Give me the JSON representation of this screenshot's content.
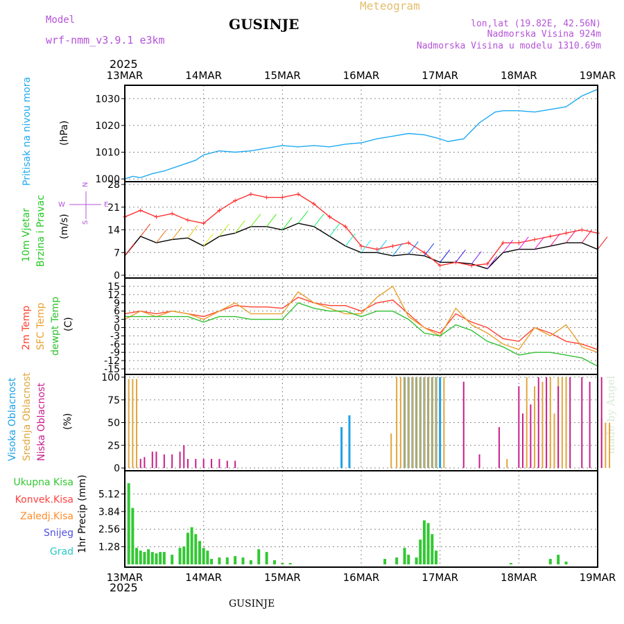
{
  "header": {
    "model_label": "Model",
    "model_name": "wrf-nmm_v3.9.1  e3km",
    "station": "GUSINJE",
    "title": "Meteogram",
    "lonlat": "lon,lat (19.82E, 42.56N)",
    "elevation": "Nadmorska Visina 924m",
    "model_elevation": "Nadmorska Visina u modelu 1310.69m",
    "year_top": "2025",
    "year_bottom": "2025",
    "footer_station": "GUSINJE",
    "watermark": "made by Angel"
  },
  "time_axis": {
    "days": [
      "13MAR",
      "14MAR",
      "15MAR",
      "16MAR",
      "17MAR",
      "18MAR",
      "19MAR"
    ]
  },
  "chart_data": [
    {
      "type": "line",
      "panel": "pressure",
      "labels": [
        "Pritisak na nivou mora",
        "(hPa)"
      ],
      "ylim": [
        999,
        1035
      ],
      "yticks": [
        1000,
        1010,
        1020,
        1030
      ],
      "series": [
        {
          "name": "MSLP",
          "color": "#1eaaf0",
          "x": [
            0,
            0.1,
            0.2,
            0.35,
            0.5,
            0.7,
            0.9,
            1.0,
            1.2,
            1.4,
            1.6,
            1.8,
            2.0,
            2.2,
            2.4,
            2.6,
            2.8,
            3.0,
            3.2,
            3.4,
            3.6,
            3.8,
            4.0,
            4.1,
            4.3,
            4.4,
            4.5,
            4.6,
            4.7,
            4.8,
            5.0,
            5.2,
            5.4,
            5.6,
            5.8,
            6.0
          ],
          "values": [
            1000,
            1001,
            1000.5,
            1002,
            1003,
            1005,
            1007,
            1009,
            1010.5,
            1010,
            1010.5,
            1011.5,
            1012.5,
            1012,
            1012.5,
            1012,
            1013,
            1013.5,
            1015,
            1016,
            1017,
            1016.5,
            1015,
            1014,
            1015,
            1018,
            1021,
            1023,
            1025,
            1025.5,
            1025.5,
            1025,
            1026,
            1027,
            1031,
            1033.5
          ]
        }
      ]
    },
    {
      "type": "line",
      "panel": "wind",
      "labels": [
        "10m Vjetar",
        "Brzina i Pravac",
        "(m/s)"
      ],
      "direction_legend": [
        "N",
        "W",
        "E",
        "S"
      ],
      "ylim": [
        0,
        28
      ],
      "yticks": [
        0,
        7,
        14,
        21,
        28
      ],
      "series": [
        {
          "name": "10m wind speed",
          "color": "#000000",
          "x": [
            0,
            0.2,
            0.4,
            0.6,
            0.8,
            1.0,
            1.2,
            1.4,
            1.6,
            1.8,
            2.0,
            2.2,
            2.4,
            2.6,
            2.8,
            3.0,
            3.2,
            3.4,
            3.6,
            3.8,
            4.0,
            4.2,
            4.4,
            4.6,
            4.8,
            5.0,
            5.2,
            5.4,
            5.6,
            5.8,
            6.0
          ],
          "values": [
            6,
            12,
            10,
            11,
            11.5,
            9,
            12,
            13,
            15,
            15,
            14,
            16,
            15,
            12,
            9,
            7,
            7,
            6,
            6.5,
            6,
            4,
            4,
            3.5,
            2,
            7,
            8,
            8,
            9,
            10,
            10,
            8
          ]
        },
        {
          "name": "10m wind gust",
          "color": "#ff3030",
          "x": [
            0,
            0.2,
            0.4,
            0.6,
            0.8,
            1.0,
            1.2,
            1.4,
            1.6,
            1.8,
            2.0,
            2.2,
            2.4,
            2.6,
            2.8,
            3.0,
            3.2,
            3.4,
            3.6,
            3.8,
            4.0,
            4.2,
            4.4,
            4.6,
            4.8,
            5.0,
            5.2,
            5.4,
            5.6,
            5.8,
            6.0
          ],
          "values": [
            18,
            20,
            18,
            19,
            17,
            16,
            20,
            23,
            25,
            24,
            24,
            25,
            22,
            18,
            15,
            9,
            8,
            9,
            10,
            7,
            3,
            4,
            3,
            3.5,
            10,
            10,
            11,
            12,
            13,
            14,
            13
          ]
        }
      ]
    },
    {
      "type": "line",
      "panel": "temperature",
      "labels": [
        "2m Temp",
        "SFC Temp",
        "dewpt Temp",
        "(C)"
      ],
      "ylim": [
        -16,
        17
      ],
      "yticks": [
        15,
        12,
        9,
        6,
        3,
        0,
        -3,
        -6,
        -9,
        -12,
        -15
      ],
      "series": [
        {
          "name": "2m Temp",
          "color": "#ff4030",
          "x": [
            0,
            0.2,
            0.4,
            0.6,
            0.8,
            1.0,
            1.2,
            1.4,
            1.6,
            1.8,
            2.0,
            2.2,
            2.4,
            2.6,
            2.8,
            3.0,
            3.2,
            3.4,
            3.6,
            3.8,
            4.0,
            4.2,
            4.4,
            4.6,
            4.8,
            5.0,
            5.2,
            5.4,
            5.6,
            5.8,
            6.0
          ],
          "values": [
            5,
            6,
            5,
            6,
            5,
            4,
            6,
            8,
            7.5,
            7.5,
            7,
            11,
            9,
            8,
            8,
            6,
            9,
            10,
            5,
            0,
            -2,
            5,
            2,
            0,
            -4,
            -5,
            0,
            -2,
            -5,
            -6,
            -8
          ]
        },
        {
          "name": "SFC Temp",
          "color": "#e8a030",
          "x": [
            0,
            0.2,
            0.4,
            0.6,
            0.8,
            1.0,
            1.2,
            1.4,
            1.6,
            1.8,
            2.0,
            2.2,
            2.4,
            2.6,
            2.8,
            3.0,
            3.2,
            3.4,
            3.6,
            3.8,
            4.0,
            4.2,
            4.4,
            4.6,
            4.8,
            5.0,
            5.2,
            5.4,
            5.6,
            5.8,
            6.0
          ],
          "values": [
            3,
            6,
            4,
            6,
            5,
            3,
            6,
            9,
            5,
            5,
            5,
            13,
            9,
            7,
            5,
            5,
            11,
            15,
            4,
            0,
            -3,
            7,
            1,
            -2,
            -6,
            -8,
            0,
            -3,
            1,
            -7,
            -9
          ]
        },
        {
          "name": "dewpt Temp",
          "color": "#30c030",
          "x": [
            0,
            0.2,
            0.4,
            0.6,
            0.8,
            1.0,
            1.2,
            1.4,
            1.6,
            1.8,
            2.0,
            2.2,
            2.4,
            2.6,
            2.8,
            3.0,
            3.2,
            3.4,
            3.6,
            3.8,
            4.0,
            4.2,
            4.4,
            4.6,
            4.8,
            5.0,
            5.2,
            5.4,
            5.6,
            5.8,
            6.0
          ],
          "values": [
            4,
            4,
            4,
            4,
            4,
            2,
            4,
            4,
            3,
            3,
            3,
            9,
            7,
            6,
            6,
            4,
            6,
            6,
            3,
            -2,
            -3,
            1,
            -1,
            -5,
            -7,
            -10,
            -9,
            -9,
            -10,
            -11,
            -14
          ]
        }
      ]
    },
    {
      "type": "bar",
      "panel": "cloud",
      "labels": [
        "Visoka Oblacnost",
        "Srednja Oblacnost",
        "Niska Oblacnost",
        "(%)"
      ],
      "ylim": [
        0,
        100
      ],
      "yticks": [
        0,
        25,
        50,
        75,
        100
      ],
      "series": [
        {
          "name": "Visoka Oblacnost",
          "color": "#1ea0e6",
          "x": [
            2.75,
            2.85,
            3.55,
            3.6,
            3.65,
            3.7,
            3.75,
            3.8,
            3.85,
            3.9,
            3.95,
            4.0
          ],
          "values": [
            45,
            58,
            100,
            100,
            100,
            100,
            100,
            100,
            100,
            100,
            100,
            100
          ]
        },
        {
          "name": "Srednja Oblacnost",
          "color": "#e1a53c",
          "x": [
            0.05,
            0.1,
            0.15,
            3.38,
            3.45,
            3.5,
            3.55,
            3.6,
            3.65,
            3.7,
            3.75,
            3.8,
            3.85,
            3.9,
            3.95,
            4.05,
            4.85,
            5.1,
            5.2,
            5.3,
            5.4,
            5.45,
            5.5,
            5.55,
            5.6,
            6.0,
            6.05,
            6.1,
            6.15
          ],
          "values": [
            98,
            98,
            98,
            38,
            100,
            100,
            100,
            100,
            100,
            100,
            100,
            100,
            100,
            100,
            100,
            100,
            10,
            100,
            90,
            95,
            100,
            60,
            100,
            100,
            100,
            18,
            55,
            50,
            50
          ]
        },
        {
          "name": "Niska Oblacnost",
          "color": "#c81e8c",
          "x": [
            0.2,
            0.25,
            0.35,
            0.4,
            0.5,
            0.6,
            0.7,
            0.75,
            0.8,
            0.9,
            1.0,
            1.1,
            1.2,
            1.3,
            1.4,
            4.3,
            4.5,
            4.75,
            5.0,
            5.05,
            5.15,
            5.25,
            5.35,
            5.5,
            5.65,
            5.8,
            5.9,
            6.05
          ],
          "values": [
            10,
            12,
            18,
            18,
            15,
            15,
            18,
            25,
            10,
            10,
            10,
            10,
            10,
            8,
            8,
            95,
            15,
            45,
            90,
            60,
            70,
            100,
            100,
            90,
            100,
            100,
            95,
            100
          ]
        }
      ]
    },
    {
      "type": "bar",
      "panel": "precip",
      "labels": [
        "Ukupna Kisa",
        "Konvek.Kisa",
        "Zaledj.Kisa",
        "Snijeg",
        "Grad",
        "1hr Precip (mm)"
      ],
      "ylim": [
        0,
        6.6
      ],
      "yticks": [
        1.28,
        2.56,
        3.84,
        5.12
      ],
      "series": [
        {
          "name": "Ukupna Kisa",
          "color": "#32c832",
          "x": [
            0.05,
            0.1,
            0.15,
            0.2,
            0.25,
            0.3,
            0.35,
            0.4,
            0.45,
            0.5,
            0.6,
            0.7,
            0.75,
            0.8,
            0.85,
            0.9,
            0.95,
            1.0,
            1.05,
            1.1,
            1.2,
            1.3,
            1.4,
            1.5,
            1.6,
            1.7,
            1.8,
            1.9,
            2.0,
            2.1,
            3.3,
            3.45,
            3.55,
            3.6,
            3.7,
            3.75,
            3.8,
            3.85,
            3.9,
            3.95,
            4.9,
            5.4,
            5.5,
            5.6
          ],
          "values": [
            5.9,
            4.1,
            1.2,
            1.0,
            0.9,
            1.1,
            0.9,
            0.8,
            0.9,
            0.9,
            0.7,
            1.2,
            1.3,
            2.3,
            2.7,
            2.2,
            1.7,
            1.2,
            1.0,
            0.4,
            0.5,
            0.5,
            0.6,
            0.5,
            0.3,
            1.1,
            0.9,
            0.3,
            0.1,
            0.1,
            0.4,
            0.5,
            1.2,
            0.7,
            0.5,
            1.8,
            3.2,
            3.0,
            2.2,
            1.0,
            0.1,
            0.4,
            0.7,
            0.2
          ]
        }
      ]
    }
  ]
}
